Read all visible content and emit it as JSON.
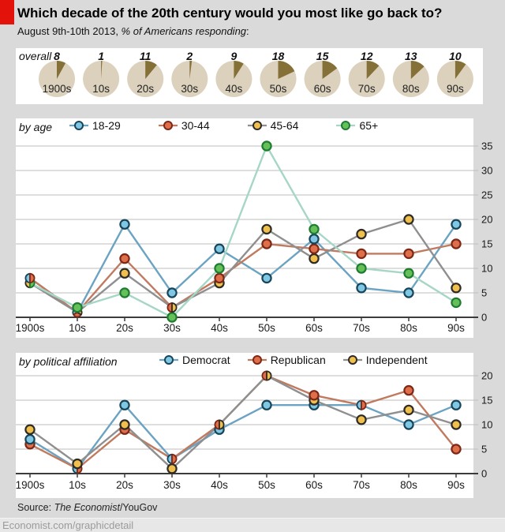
{
  "page": {
    "title": "Which decade of the 20th century would you most like go back to?",
    "subtitle_date": "August 9th-10th 2013, ",
    "subtitle_italic": "% of Americans responding",
    "subtitle_colon": ":",
    "source_label": "Source: ",
    "source_italic": "The Economist",
    "source_suffix": "/YouGov",
    "site_link": "Economist.com/graphicdetail"
  },
  "colors": {
    "brand_red": "#e3120b",
    "page_bg": "#dadada",
    "panel_bg": "#ffffff",
    "grid": "#bdbdbd",
    "axis": "#3c3c3c",
    "pie_base": "#dcd1bd",
    "pie_wedge": "#857038"
  },
  "chart_data": [
    {
      "type": "pie",
      "title": "overall",
      "categories": [
        "1900s",
        "10s",
        "20s",
        "30s",
        "40s",
        "50s",
        "60s",
        "70s",
        "80s",
        "90s"
      ],
      "values": [
        8,
        1,
        11,
        2,
        9,
        18,
        15,
        12,
        13,
        10
      ],
      "note": "each pie shows % choosing that decade, wedge starts at 12 o'clock"
    },
    {
      "type": "line",
      "title": "by age",
      "categories": [
        "1900s",
        "10s",
        "20s",
        "30s",
        "40s",
        "50s",
        "60s",
        "70s",
        "80s",
        "90s"
      ],
      "ylim": [
        0,
        35
      ],
      "ytick_step": 5,
      "grid": true,
      "legend_position": "top",
      "yaxis_side": "right",
      "series": [
        {
          "name": "18-29",
          "values": [
            8,
            1,
            19,
            5,
            14,
            8,
            16,
            6,
            5,
            19
          ],
          "line_color": "#6ba3c2",
          "marker_fill": "#80c7e3",
          "marker_stroke": "#16455a"
        },
        {
          "name": "30-44",
          "values": [
            8,
            1,
            12,
            2,
            8,
            15,
            14,
            13,
            13,
            15
          ],
          "line_color": "#c07a60",
          "marker_fill": "#de6f4a",
          "marker_stroke": "#7d2817"
        },
        {
          "name": "45-64",
          "values": [
            7,
            1,
            9,
            2,
            7,
            18,
            12,
            17,
            20,
            6
          ],
          "line_color": "#8f8f8f",
          "marker_fill": "#efc04d",
          "marker_stroke": "#2e2b26"
        },
        {
          "name": "65+",
          "values": [
            7,
            2,
            5,
            0,
            10,
            35,
            18,
            10,
            9,
            3
          ],
          "line_color": "#a5d6c6",
          "marker_fill": "#66c05a",
          "marker_stroke": "#1e7c31"
        }
      ]
    },
    {
      "type": "line",
      "title": "by political affiliation",
      "categories": [
        "1900s",
        "10s",
        "20s",
        "30s",
        "40s",
        "50s",
        "60s",
        "70s",
        "80s",
        "90s"
      ],
      "ylim": [
        0,
        20
      ],
      "ytick_step": 5,
      "grid": true,
      "legend_position": "top",
      "yaxis_side": "right",
      "series": [
        {
          "name": "Democrat",
          "values": [
            7,
            1,
            14,
            3,
            9,
            14,
            14,
            14,
            10,
            14
          ],
          "line_color": "#6ba3c2",
          "marker_fill": "#80c7e3",
          "marker_stroke": "#16455a"
        },
        {
          "name": "Republican",
          "values": [
            6,
            1,
            9,
            3,
            10,
            20,
            16,
            14,
            17,
            5
          ],
          "line_color": "#c07a60",
          "marker_fill": "#de6f4a",
          "marker_stroke": "#7d2817"
        },
        {
          "name": "Independent",
          "values": [
            9,
            2,
            10,
            1,
            10,
            20,
            15,
            11,
            13,
            10
          ],
          "line_color": "#8f8f8f",
          "marker_fill": "#efc04d",
          "marker_stroke": "#2e2b26"
        }
      ]
    }
  ]
}
